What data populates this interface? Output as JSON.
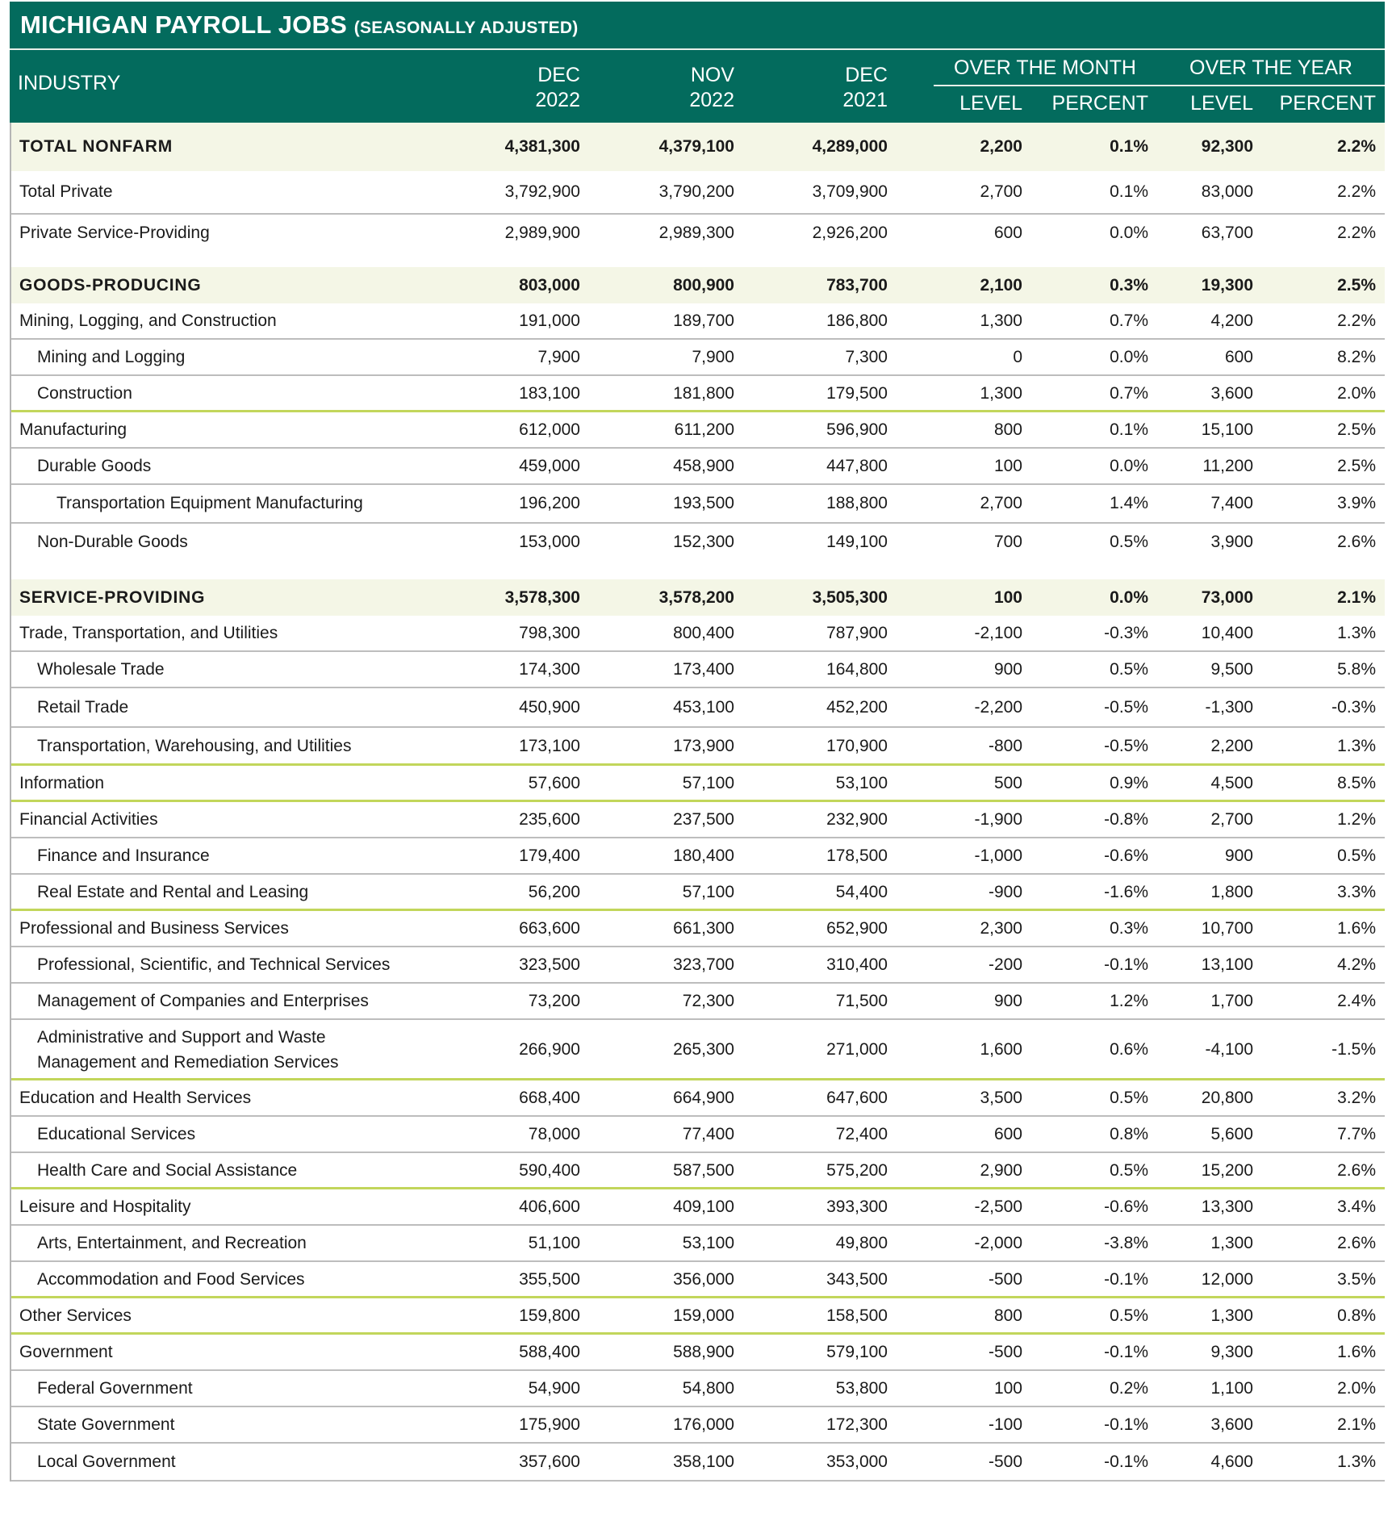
{
  "title": {
    "main": "MICHIGAN PAYROLL JOBS",
    "sub": "(SEASONALLY ADJUSTED)"
  },
  "colors": {
    "header": "#036b5d",
    "band": "#f4f6e6",
    "section_divider": "#c2d65b",
    "row_divider": "#bdbdbd"
  },
  "header": {
    "industry": "INDUSTRY",
    "dec2022": {
      "l1": "DEC",
      "l2": "2022"
    },
    "nov2022": {
      "l1": "NOV",
      "l2": "2022"
    },
    "dec2021": {
      "l1": "DEC",
      "l2": "2021"
    },
    "over_month": "OVER THE MONTH",
    "over_year": "OVER THE YEAR",
    "level": "LEVEL",
    "percent": "PERCENT"
  },
  "rows": [
    {
      "label": "TOTAL NONFARM",
      "indent": 0,
      "bold": true,
      "divider": "none",
      "values": [
        "4,381,300",
        "4,379,100",
        "4,289,000",
        "2,200",
        "0.1%",
        "92,300",
        "2.2%"
      ]
    },
    {
      "label": "Total Private",
      "indent": 0,
      "bold": false,
      "divider": "gray",
      "values": [
        "3,792,900",
        "3,790,200",
        "3,709,900",
        "2,700",
        "0.1%",
        "83,000",
        "2.2%"
      ]
    },
    {
      "label": "Private Service-Providing",
      "indent": 0,
      "bold": false,
      "divider": "none",
      "values": [
        "2,989,900",
        "2,989,300",
        "2,926,200",
        "600",
        "0.0%",
        "63,700",
        "2.2%"
      ]
    },
    {
      "label": "GOODS-PRODUCING",
      "indent": 0,
      "bold": true,
      "divider": "none",
      "values": [
        "803,000",
        "800,900",
        "783,700",
        "2,100",
        "0.3%",
        "19,300",
        "2.5%"
      ]
    },
    {
      "label": "Mining, Logging, and Construction",
      "indent": 0,
      "bold": false,
      "divider": "gray",
      "values": [
        "191,000",
        "189,700",
        "186,800",
        "1,300",
        "0.7%",
        "4,200",
        "2.2%"
      ]
    },
    {
      "label": "Mining and Logging",
      "indent": 1,
      "bold": false,
      "divider": "gray",
      "values": [
        "7,900",
        "7,900",
        "7,300",
        "0",
        "0.0%",
        "600",
        "8.2%"
      ]
    },
    {
      "label": "Construction",
      "indent": 1,
      "bold": false,
      "divider": "green",
      "values": [
        "183,100",
        "181,800",
        "179,500",
        "1,300",
        "0.7%",
        "3,600",
        "2.0%"
      ]
    },
    {
      "label": "Manufacturing",
      "indent": 0,
      "bold": false,
      "divider": "gray",
      "values": [
        "612,000",
        "611,200",
        "596,900",
        "800",
        "0.1%",
        "15,100",
        "2.5%"
      ]
    },
    {
      "label": "Durable Goods",
      "indent": 1,
      "bold": false,
      "divider": "gray",
      "values": [
        "459,000",
        "458,900",
        "447,800",
        "100",
        "0.0%",
        "11,200",
        "2.5%"
      ]
    },
    {
      "label": "Transportation Equipment Manufacturing",
      "indent": 2,
      "bold": false,
      "divider": "gray",
      "values": [
        "196,200",
        "193,500",
        "188,800",
        "2,700",
        "1.4%",
        "7,400",
        "3.9%"
      ]
    },
    {
      "label": "Non-Durable Goods",
      "indent": 1,
      "bold": false,
      "divider": "none",
      "values": [
        "153,000",
        "152,300",
        "149,100",
        "700",
        "0.5%",
        "3,900",
        "2.6%"
      ]
    },
    {
      "label": "SERVICE-PROVIDING",
      "indent": 0,
      "bold": true,
      "divider": "none",
      "values": [
        "3,578,300",
        "3,578,200",
        "3,505,300",
        "100",
        "0.0%",
        "73,000",
        "2.1%"
      ]
    },
    {
      "label": "Trade, Transportation, and Utilities",
      "indent": 0,
      "bold": false,
      "divider": "gray",
      "values": [
        "798,300",
        "800,400",
        "787,900",
        "-2,100",
        "-0.3%",
        "10,400",
        "1.3%"
      ]
    },
    {
      "label": "Wholesale Trade",
      "indent": 1,
      "bold": false,
      "divider": "gray",
      "values": [
        "174,300",
        "173,400",
        "164,800",
        "900",
        "0.5%",
        "9,500",
        "5.8%"
      ]
    },
    {
      "label": "Retail Trade",
      "indent": 1,
      "bold": false,
      "divider": "gray",
      "values": [
        "450,900",
        "453,100",
        "452,200",
        "-2,200",
        "-0.5%",
        "-1,300",
        "-0.3%"
      ]
    },
    {
      "label": "Transportation, Warehousing, and Utilities",
      "indent": 1,
      "bold": false,
      "divider": "green",
      "values": [
        "173,100",
        "173,900",
        "170,900",
        "-800",
        "-0.5%",
        "2,200",
        "1.3%"
      ]
    },
    {
      "label": "Information",
      "indent": 0,
      "bold": false,
      "divider": "green",
      "values": [
        "57,600",
        "57,100",
        "53,100",
        "500",
        "0.9%",
        "4,500",
        "8.5%"
      ]
    },
    {
      "label": "Financial Activities",
      "indent": 0,
      "bold": false,
      "divider": "gray",
      "values": [
        "235,600",
        "237,500",
        "232,900",
        "-1,900",
        "-0.8%",
        "2,700",
        "1.2%"
      ]
    },
    {
      "label": "Finance and Insurance",
      "indent": 1,
      "bold": false,
      "divider": "gray",
      "values": [
        "179,400",
        "180,400",
        "178,500",
        "-1,000",
        "-0.6%",
        "900",
        "0.5%"
      ]
    },
    {
      "label": "Real Estate and Rental and Leasing",
      "indent": 1,
      "bold": false,
      "divider": "green",
      "values": [
        "56,200",
        "57,100",
        "54,400",
        "-900",
        "-1.6%",
        "1,800",
        "3.3%"
      ]
    },
    {
      "label": "Professional and Business Services",
      "indent": 0,
      "bold": false,
      "divider": "gray",
      "values": [
        "663,600",
        "661,300",
        "652,900",
        "2,300",
        "0.3%",
        "10,700",
        "1.6%"
      ]
    },
    {
      "label": "Professional, Scientific, and Technical Services",
      "indent": 1,
      "bold": false,
      "divider": "gray",
      "values": [
        "323,500",
        "323,700",
        "310,400",
        "-200",
        "-0.1%",
        "13,100",
        "4.2%"
      ]
    },
    {
      "label": "Management of Companies and Enterprises",
      "indent": 1,
      "bold": false,
      "divider": "gray",
      "values": [
        "73,200",
        "72,300",
        "71,500",
        "900",
        "1.2%",
        "1,700",
        "2.4%"
      ]
    },
    {
      "label": "Administrative and Support and Waste\nManagement and Remediation Services",
      "indent": 1,
      "bold": false,
      "divider": "green",
      "values": [
        "266,900",
        "265,300",
        "271,000",
        "1,600",
        "0.6%",
        "-4,100",
        "-1.5%"
      ]
    },
    {
      "label": "Education and Health Services",
      "indent": 0,
      "bold": false,
      "divider": "gray",
      "values": [
        "668,400",
        "664,900",
        "647,600",
        "3,500",
        "0.5%",
        "20,800",
        "3.2%"
      ]
    },
    {
      "label": "Educational Services",
      "indent": 1,
      "bold": false,
      "divider": "gray",
      "values": [
        "78,000",
        "77,400",
        "72,400",
        "600",
        "0.8%",
        "5,600",
        "7.7%"
      ]
    },
    {
      "label": "Health Care and Social Assistance",
      "indent": 1,
      "bold": false,
      "divider": "green",
      "values": [
        "590,400",
        "587,500",
        "575,200",
        "2,900",
        "0.5%",
        "15,200",
        "2.6%"
      ]
    },
    {
      "label": "Leisure and Hospitality",
      "indent": 0,
      "bold": false,
      "divider": "gray",
      "values": [
        "406,600",
        "409,100",
        "393,300",
        "-2,500",
        "-0.6%",
        "13,300",
        "3.4%"
      ]
    },
    {
      "label": "Arts, Entertainment, and Recreation",
      "indent": 1,
      "bold": false,
      "divider": "gray",
      "values": [
        "51,100",
        "53,100",
        "49,800",
        "-2,000",
        "-3.8%",
        "1,300",
        "2.6%"
      ]
    },
    {
      "label": "Accommodation and Food Services",
      "indent": 1,
      "bold": false,
      "divider": "green",
      "values": [
        "355,500",
        "356,000",
        "343,500",
        "-500",
        "-0.1%",
        "12,000",
        "3.5%"
      ]
    },
    {
      "label": "Other Services",
      "indent": 0,
      "bold": false,
      "divider": "green",
      "values": [
        "159,800",
        "159,000",
        "158,500",
        "800",
        "0.5%",
        "1,300",
        "0.8%"
      ]
    },
    {
      "label": "Government",
      "indent": 0,
      "bold": false,
      "divider": "gray",
      "values": [
        "588,400",
        "588,900",
        "579,100",
        "-500",
        "-0.1%",
        "9,300",
        "1.6%"
      ]
    },
    {
      "label": "Federal Government",
      "indent": 1,
      "bold": false,
      "divider": "gray",
      "values": [
        "54,900",
        "54,800",
        "53,800",
        "100",
        "0.2%",
        "1,100",
        "2.0%"
      ]
    },
    {
      "label": "State Government",
      "indent": 1,
      "bold": false,
      "divider": "gray",
      "values": [
        "175,900",
        "176,000",
        "172,300",
        "-100",
        "-0.1%",
        "3,600",
        "2.1%"
      ]
    },
    {
      "label": "Local Government",
      "indent": 1,
      "bold": false,
      "divider": "gray",
      "values": [
        "357,600",
        "358,100",
        "353,000",
        "-500",
        "-0.1%",
        "4,600",
        "1.3%"
      ]
    }
  ]
}
